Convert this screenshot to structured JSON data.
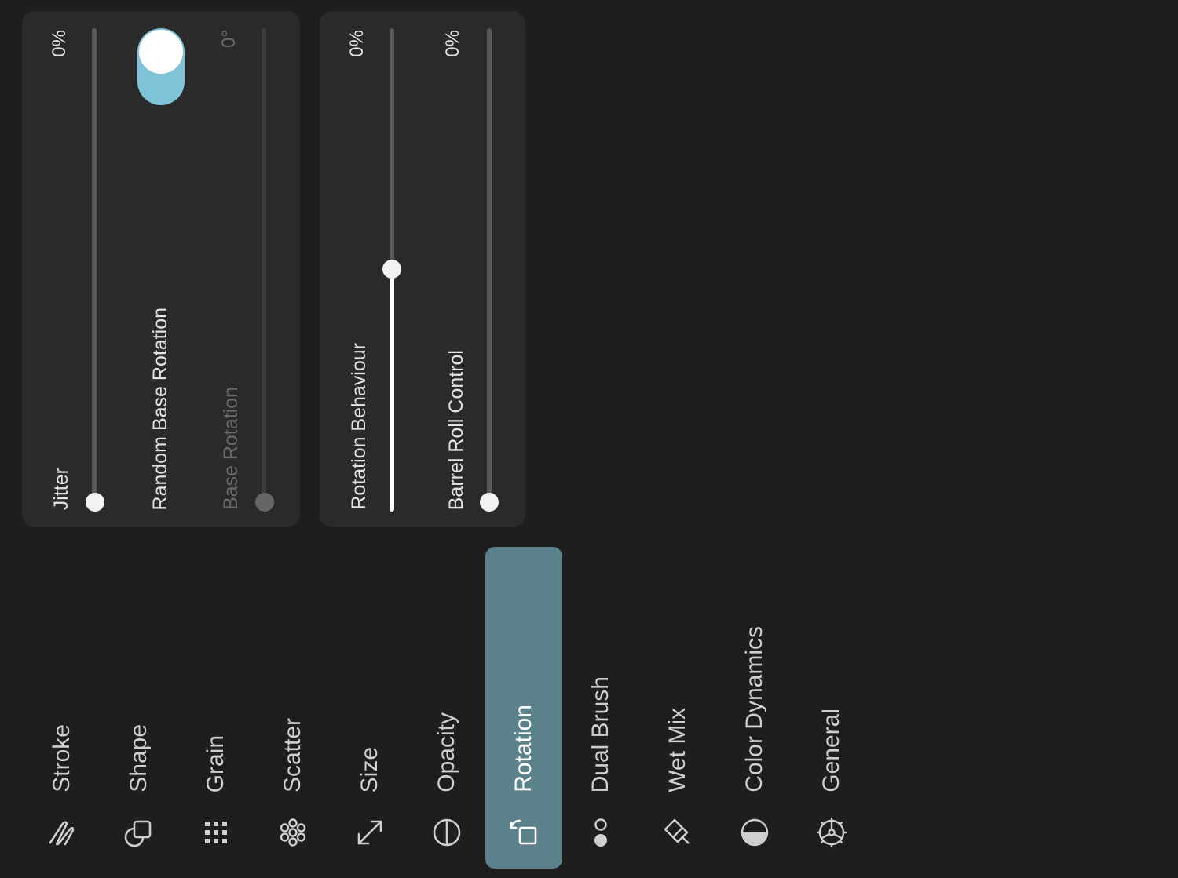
{
  "rotation_panel": {
    "jitter": {
      "label": "Jitter",
      "value": "0%",
      "level": 0
    },
    "random_base_rotation": {
      "label": "Random Base Rotation",
      "enabled": true
    },
    "base_rotation": {
      "label": "Base Rotation",
      "value": "0°",
      "disabled": true,
      "level": 0
    }
  },
  "behaviour_panel": {
    "rotation_behaviour": {
      "label": "Rotation Behaviour",
      "value": "0%",
      "level": 0.5
    },
    "barrel_roll": {
      "label": "Barrel Roll Control",
      "value": "0%",
      "level": 0
    }
  },
  "sidebar": {
    "active": "Rotation",
    "active_color": "#5b818b",
    "items": [
      {
        "label": "Stroke",
        "icon": "stroke-icon"
      },
      {
        "label": "Shape",
        "icon": "shape-icon"
      },
      {
        "label": "Grain",
        "icon": "grain-icon"
      },
      {
        "label": "Scatter",
        "icon": "scatter-icon"
      },
      {
        "label": "Size",
        "icon": "size-icon"
      },
      {
        "label": "Opacity",
        "icon": "opacity-icon"
      },
      {
        "label": "Rotation",
        "icon": "rotation-icon"
      },
      {
        "label": "Dual Brush",
        "icon": "dual-brush-icon"
      },
      {
        "label": "Wet Mix",
        "icon": "wet-mix-icon"
      },
      {
        "label": "Color Dynamics",
        "icon": "color-dynamics-icon"
      },
      {
        "label": "General",
        "icon": "general-icon"
      }
    ]
  },
  "colors": {
    "toggle_on": "#7ec3d8",
    "panel_bg": "#2a2a2a",
    "app_bg": "#1e1e1e"
  }
}
